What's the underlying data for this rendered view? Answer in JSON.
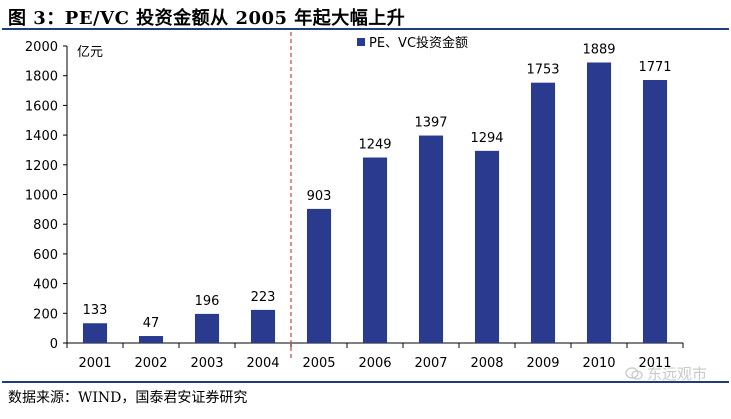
{
  "figure": {
    "title": "图 3：PE/VC 投资金额从 2005 年起大幅上升",
    "source": "数据来源：WIND，国泰君安证券研究",
    "watermark": "东远观市"
  },
  "chart_data": {
    "type": "bar",
    "title": "",
    "unit_label": "亿元",
    "categories": [
      "2001",
      "2002",
      "2003",
      "2004",
      "2005",
      "2006",
      "2007",
      "2008",
      "2009",
      "2010",
      "2011"
    ],
    "series": [
      {
        "name": "PE、VC投资金额",
        "values": [
          133,
          47,
          196,
          223,
          903,
          1249,
          1397,
          1294,
          1753,
          1889,
          1771
        ]
      }
    ],
    "ylim": [
      0,
      2000
    ],
    "yticks": [
      0,
      200,
      400,
      600,
      800,
      1000,
      1200,
      1400,
      1600,
      1800,
      2000
    ],
    "data_labels": true,
    "grid": false,
    "legend_position": "top-center",
    "divider_after_category": "2004",
    "colors": {
      "bar": "#2a3b8f",
      "divider": "#d04040",
      "axis": "#000000"
    }
  }
}
